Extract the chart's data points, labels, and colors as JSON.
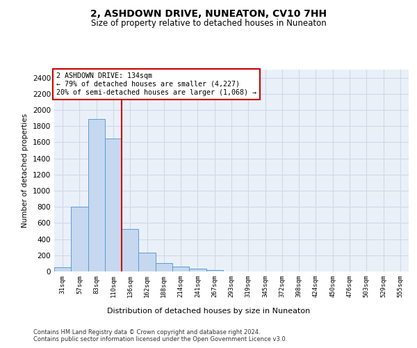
{
  "title": "2, ASHDOWN DRIVE, NUNEATON, CV10 7HH",
  "subtitle": "Size of property relative to detached houses in Nuneaton",
  "xlabel": "Distribution of detached houses by size in Nuneaton",
  "ylabel": "Number of detached properties",
  "categories": [
    "31sqm",
    "57sqm",
    "83sqm",
    "110sqm",
    "136sqm",
    "162sqm",
    "188sqm",
    "214sqm",
    "241sqm",
    "267sqm",
    "293sqm",
    "319sqm",
    "345sqm",
    "372sqm",
    "398sqm",
    "424sqm",
    "450sqm",
    "476sqm",
    "503sqm",
    "529sqm",
    "555sqm"
  ],
  "values": [
    55,
    800,
    1890,
    1650,
    530,
    237,
    107,
    60,
    37,
    20,
    0,
    0,
    0,
    0,
    0,
    0,
    0,
    0,
    0,
    0,
    0
  ],
  "bar_color": "#c5d8f0",
  "bar_edge_color": "#5b9bd5",
  "vline_x_index": 3.5,
  "vline_color": "#cc0000",
  "annotation_text": "2 ASHDOWN DRIVE: 134sqm\n← 79% of detached houses are smaller (4,227)\n20% of semi-detached houses are larger (1,068) →",
  "annotation_box_color": "#ffffff",
  "annotation_box_edge": "#cc0000",
  "ylim": [
    0,
    2500
  ],
  "yticks": [
    0,
    200,
    400,
    600,
    800,
    1000,
    1200,
    1400,
    1600,
    1800,
    2000,
    2200,
    2400
  ],
  "grid_color": "#d0d8e8",
  "background_color": "#eaf0f8",
  "footer_line1": "Contains HM Land Registry data © Crown copyright and database right 2024.",
  "footer_line2": "Contains public sector information licensed under the Open Government Licence v3.0."
}
